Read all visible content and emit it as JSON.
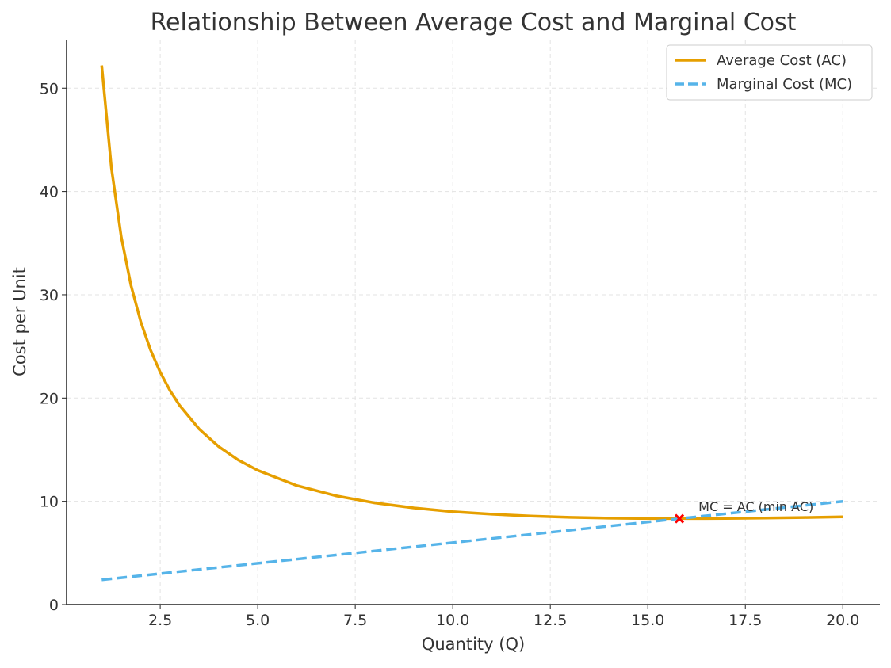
{
  "chart_data": {
    "type": "line",
    "title": "Relationship Between Average Cost and Marginal Cost",
    "xlabel": "Quantity (Q)",
    "ylabel": "Cost per Unit",
    "xlim": [
      0.1,
      20.95
    ],
    "ylim": [
      0,
      54.7
    ],
    "grid": true,
    "legend_position": "top-right",
    "x_ticks": [
      2.5,
      5.0,
      7.5,
      10.0,
      12.5,
      15.0,
      17.5,
      20.0
    ],
    "x_tick_labels": [
      "2.5",
      "5.0",
      "7.5",
      "10.0",
      "12.5",
      "15.0",
      "17.5",
      "20.0"
    ],
    "y_ticks": [
      0,
      10,
      20,
      30,
      40,
      50
    ],
    "y_tick_labels": [
      "0",
      "10",
      "20",
      "30",
      "40",
      "50"
    ],
    "series": [
      {
        "name": "Average Cost (AC)",
        "color": "#E69F00",
        "style": "solid",
        "x": [
          1,
          1.25,
          1.5,
          1.75,
          2,
          2.25,
          2.5,
          2.75,
          3,
          3.5,
          4,
          4.5,
          5,
          6,
          7,
          8,
          9,
          10,
          11,
          12,
          13,
          14,
          15,
          16,
          17,
          18,
          19,
          20
        ],
        "y": [
          52.2,
          42.25,
          35.63,
          30.92,
          27.4,
          24.67,
          22.5,
          20.73,
          19.27,
          16.99,
          15.3,
          14.01,
          13.0,
          11.53,
          10.54,
          9.85,
          9.36,
          9.0,
          8.75,
          8.57,
          8.45,
          8.37,
          8.33,
          8.33,
          8.34,
          8.38,
          8.43,
          8.5
        ]
      },
      {
        "name": "Marginal Cost (MC)",
        "color": "#56B4E9",
        "style": "dashed",
        "x": [
          1,
          20
        ],
        "y": [
          2.4,
          10.0
        ]
      }
    ],
    "annotations": [
      {
        "text": "MC = AC (min AC)",
        "x": 16.3,
        "y": 9.5,
        "marker_x": 15.81,
        "marker_y": 8.32,
        "marker_color": "#FF0000"
      }
    ]
  }
}
